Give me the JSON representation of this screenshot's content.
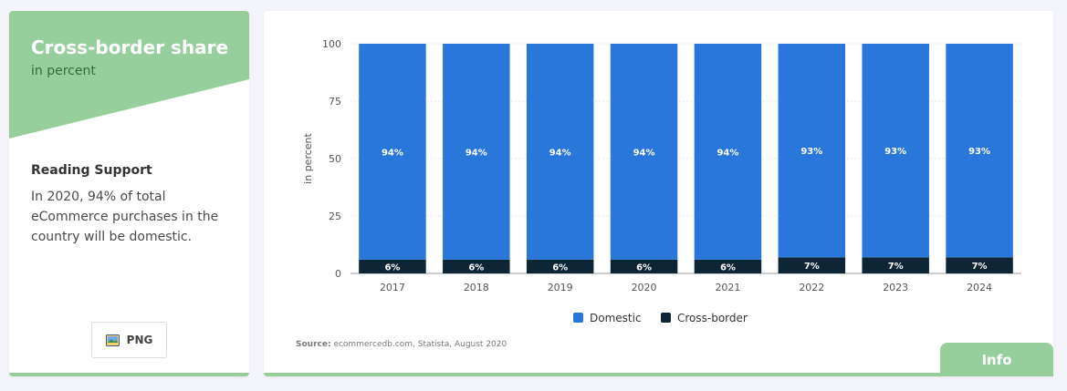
{
  "sidebar": {
    "title": "Cross-border share",
    "subtitle": "in percent",
    "reading_support_title": "Reading Support",
    "reading_support_text": "In 2020, 94% of total eCommerce purchases in the country will be domestic.",
    "png_label": "PNG",
    "accent_color": "#97cf9c"
  },
  "footer": {
    "source_label": "Source:",
    "source_text": "ecommercedb.com, Statista, August 2020",
    "info_label": "Info"
  },
  "chart_data": {
    "type": "bar",
    "stacked": true,
    "title": "Cross-border share",
    "xlabel": "",
    "ylabel": "in percent",
    "ylim": [
      0,
      100
    ],
    "yticks": [
      0,
      25,
      50,
      75,
      100
    ],
    "grid": true,
    "legend_position": "bottom",
    "categories": [
      "2017",
      "2018",
      "2019",
      "2020",
      "2021",
      "2022",
      "2023",
      "2024"
    ],
    "series": [
      {
        "name": "Cross-border",
        "color": "#0d2535",
        "values": [
          6,
          6,
          6,
          6,
          6,
          7,
          7,
          7
        ],
        "labels": [
          "6%",
          "6%",
          "6%",
          "6%",
          "6%",
          "7%",
          "7%",
          "7%"
        ]
      },
      {
        "name": "Domestic",
        "color": "#2a77dc",
        "values": [
          94,
          94,
          94,
          94,
          94,
          93,
          93,
          93
        ],
        "labels": [
          "94%",
          "94%",
          "94%",
          "94%",
          "94%",
          "93%",
          "93%",
          "93%"
        ]
      }
    ],
    "legend": [
      "Domestic",
      "Cross-border"
    ]
  }
}
